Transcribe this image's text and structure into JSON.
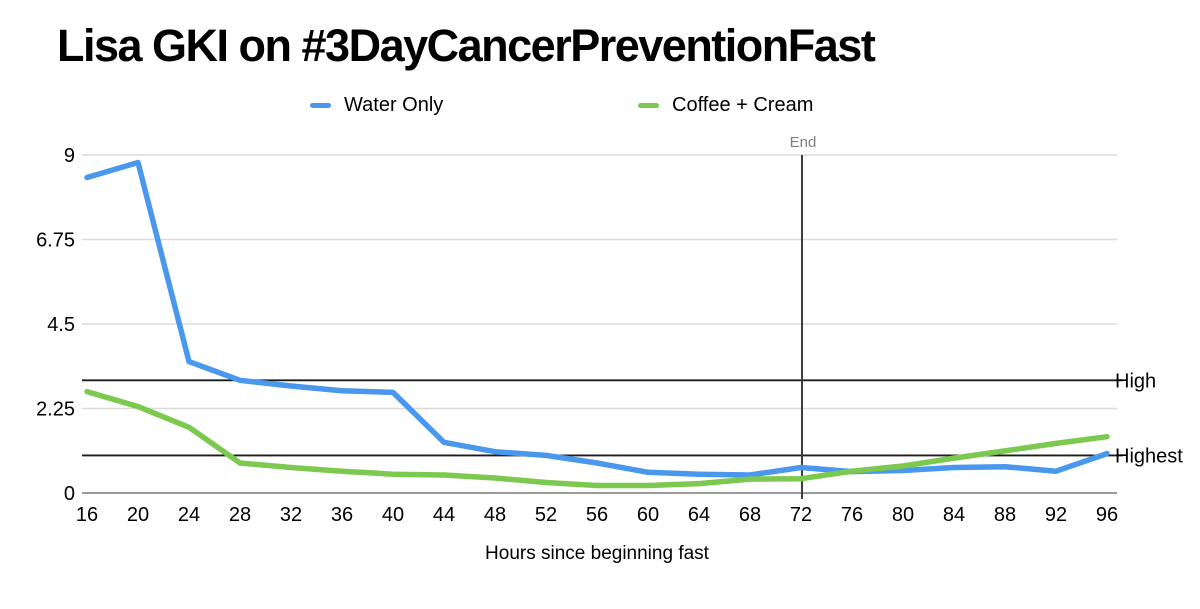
{
  "title": "Lisa GKI on #3DayCancerPreventionFast",
  "legend": [
    {
      "label": "Water Only",
      "color": "#4a97ee"
    },
    {
      "label": "Coffee + Cream",
      "color": "#7cc94f"
    }
  ],
  "chart_data": {
    "type": "line",
    "title": "Lisa GKI on #3DayCancerPreventionFast",
    "xlabel": "Hours since beginning fast",
    "ylabel": "",
    "x": [
      16,
      20,
      24,
      28,
      32,
      36,
      40,
      44,
      48,
      52,
      56,
      60,
      64,
      68,
      72,
      76,
      80,
      84,
      88,
      92,
      96
    ],
    "series": [
      {
        "name": "Water Only",
        "color": "#4a97ee",
        "values": [
          8.4,
          8.8,
          3.5,
          3.0,
          2.85,
          2.72,
          2.68,
          1.35,
          1.1,
          1.0,
          0.8,
          0.55,
          0.5,
          0.48,
          0.68,
          0.57,
          0.6,
          0.68,
          0.7,
          0.58,
          1.05
        ]
      },
      {
        "name": "Coffee + Cream",
        "color": "#7cc94f",
        "values": [
          2.7,
          2.3,
          1.75,
          0.8,
          0.68,
          0.58,
          0.5,
          0.48,
          0.4,
          0.28,
          0.2,
          0.2,
          0.25,
          0.37,
          0.38,
          0.58,
          0.72,
          0.93,
          1.12,
          1.32,
          1.5
        ]
      }
    ],
    "xlim": [
      16,
      96
    ],
    "ylim": [
      0,
      9
    ],
    "x_ticks": [
      16,
      20,
      24,
      28,
      32,
      36,
      40,
      44,
      48,
      52,
      56,
      60,
      64,
      68,
      72,
      76,
      80,
      84,
      88,
      92,
      96
    ],
    "y_ticks": [
      0,
      2.25,
      4.5,
      6.75,
      9
    ],
    "y_tick_labels": [
      "0",
      "2.25",
      "4.5",
      "6.75",
      "9"
    ],
    "grid": "horizontal",
    "legend_position": "top",
    "reference_lines": [
      {
        "orientation": "horizontal",
        "value": 3,
        "label": "High",
        "color": "#1c1c1c"
      },
      {
        "orientation": "horizontal",
        "value": 1,
        "label": "Highest",
        "color": "#1c1c1c"
      },
      {
        "orientation": "vertical",
        "value": 72,
        "label": "End",
        "color": "#3d3d3d",
        "label_color": "#808080"
      }
    ]
  },
  "colors": {
    "background": "#ffffff",
    "gridline": "#dadada",
    "axis_line": "#9a9a9a",
    "text": "#000000",
    "water_only": "#4a97ee",
    "coffee_cream": "#7cc94f"
  }
}
